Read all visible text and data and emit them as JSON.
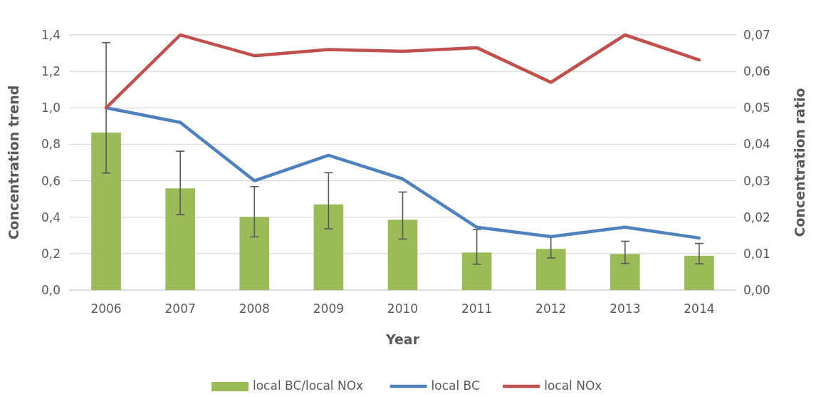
{
  "chart_data": {
    "type": "bar",
    "xlabel": "Year",
    "ylabel": "Concentration trend",
    "y2label": "Concentration ratio",
    "categories": [
      "2006",
      "2007",
      "2008",
      "2009",
      "2010",
      "2011",
      "2012",
      "2013",
      "2014"
    ],
    "series": [
      {
        "name": "local BC/local NOx",
        "axis": "y2",
        "color": "#9bbb59",
        "values": [
          0.0432,
          0.0279,
          0.0201,
          0.0235,
          0.0193,
          0.0103,
          0.0113,
          0.0099,
          0.0094
        ],
        "errors": [
          [
            0.0321,
            0.0679
          ],
          [
            0.0207,
            0.0381
          ],
          [
            0.0146,
            0.0284
          ],
          [
            0.0168,
            0.0322
          ],
          [
            0.014,
            0.0269
          ],
          [
            0.0071,
            0.0166
          ],
          [
            0.0088,
            0.0146
          ],
          [
            0.0073,
            0.0134
          ],
          [
            0.0072,
            0.0128
          ]
        ]
      },
      {
        "name": "local BC",
        "type": "line",
        "color": "#4f81bd",
        "values": [
          1.0,
          0.92,
          0.6,
          0.74,
          0.61,
          0.345,
          0.293,
          0.345,
          0.286
        ]
      },
      {
        "name": "local NOx",
        "type": "line",
        "color": "#c0504d",
        "values": [
          1.0,
          1.4,
          1.286,
          1.32,
          1.31,
          1.33,
          1.14,
          1.4,
          1.263
        ]
      }
    ],
    "ylim": [
      0,
      1.4
    ],
    "yticks": [
      {
        "value": 0,
        "label": "0,0"
      },
      {
        "value": 0.2,
        "label": "0,2"
      },
      {
        "value": 0.4,
        "label": "0,4"
      },
      {
        "value": 0.6,
        "label": "0,6"
      },
      {
        "value": 0.8,
        "label": "0,8"
      },
      {
        "value": 1.0,
        "label": "1,0"
      },
      {
        "value": 1.2,
        "label": "1,2"
      },
      {
        "value": 1.4,
        "label": "1,4"
      }
    ],
    "y2lim": [
      0,
      0.07
    ],
    "y2ticks": [
      {
        "value": 0,
        "label": "0,00"
      },
      {
        "value": 0.01,
        "label": "0,01"
      },
      {
        "value": 0.02,
        "label": "0,02"
      },
      {
        "value": 0.03,
        "label": "0,03"
      },
      {
        "value": 0.04,
        "label": "0,04"
      },
      {
        "value": 0.05,
        "label": "0,05"
      },
      {
        "value": 0.06,
        "label": "0,06"
      },
      {
        "value": 0.07,
        "label": "0,07"
      }
    ],
    "grid": "y",
    "legend": "bottom",
    "line_style": "solid",
    "marker": "none"
  }
}
